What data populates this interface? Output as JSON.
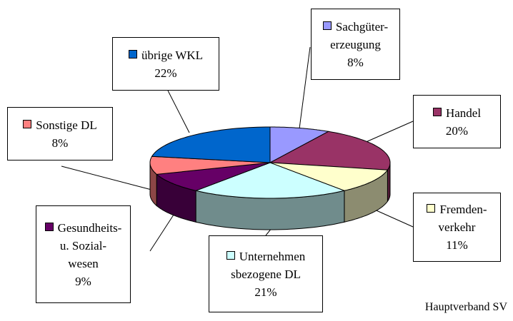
{
  "chart_data": {
    "type": "pie",
    "categories": [
      "Sachgüter-\nerzeugung",
      "Handel",
      "Fremden-\nverkehr",
      "Unternehmen\nsbezogene DL",
      "Gesundheits-\nu. Sozial-\nwesen",
      "Sonstige DL",
      "übrige WKL"
    ],
    "values": [
      8,
      20,
      11,
      21,
      9,
      8,
      22
    ],
    "value_labels": [
      "8%",
      "20%",
      "11%",
      "21%",
      "9%",
      "8%",
      "22%"
    ],
    "colors": [
      "#9999ff",
      "#993366",
      "#ffffcc",
      "#ccffff",
      "#660066",
      "#ff8080",
      "#0066cc"
    ],
    "source": "Hauptverband SV"
  }
}
